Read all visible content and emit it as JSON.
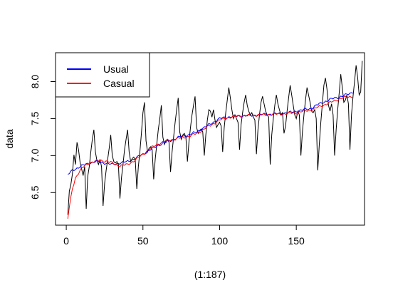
{
  "chart_data": {
    "type": "line",
    "title": "",
    "xlabel": "(1:187)",
    "ylabel": "data",
    "xlim": [
      -7,
      194.5
    ],
    "ylim": [
      6.06,
      8.39
    ],
    "x_ticks": [
      0,
      50,
      100,
      150
    ],
    "y_ticks": [
      6.5,
      7.0,
      7.5,
      8.0
    ],
    "x_tick_labels": [
      "0",
      "50",
      "100",
      "150"
    ],
    "y_tick_labels": [
      "6.5",
      "7.0",
      "7.5",
      "8.0"
    ],
    "grid": false,
    "legend": {
      "position": "top-left"
    },
    "n": 187,
    "series": [
      {
        "role": "data",
        "color": "#000000",
        "values": [
          6.2,
          6.52,
          6.61,
          6.75,
          7.01,
          6.88,
          7.18,
          7.08,
          6.91,
          6.82,
          6.73,
          6.85,
          6.28,
          6.72,
          6.85,
          7.05,
          7.22,
          7.35,
          7.05,
          6.93,
          6.88,
          6.95,
          6.85,
          6.32,
          6.62,
          6.8,
          6.95,
          7.1,
          7.28,
          7.0,
          6.92,
          6.9,
          6.92,
          6.88,
          6.42,
          6.7,
          6.88,
          7.08,
          7.22,
          7.35,
          7.05,
          6.92,
          6.96,
          6.98,
          6.94,
          6.55,
          6.85,
          7.05,
          7.3,
          7.58,
          7.72,
          7.2,
          7.05,
          7.1,
          7.12,
          7.08,
          6.68,
          6.95,
          7.15,
          7.35,
          7.5,
          7.68,
          7.25,
          7.15,
          7.2,
          7.22,
          7.18,
          6.78,
          7.05,
          7.25,
          7.45,
          7.62,
          7.78,
          7.32,
          7.22,
          7.28,
          7.3,
          7.25,
          6.92,
          7.18,
          7.38,
          7.55,
          7.68,
          7.8,
          7.38,
          7.3,
          7.34,
          7.36,
          7.32,
          7.0,
          7.28,
          7.48,
          7.62,
          7.6,
          7.52,
          7.62,
          7.48,
          7.38,
          7.42,
          7.45,
          7.4,
          7.05,
          7.38,
          7.58,
          7.75,
          7.92,
          7.78,
          7.62,
          7.5,
          7.55,
          7.5,
          7.45,
          7.08,
          7.42,
          7.58,
          7.72,
          7.82,
          7.68,
          7.6,
          7.55,
          7.58,
          7.52,
          7.48,
          7.02,
          7.35,
          7.55,
          7.72,
          7.8,
          7.7,
          7.6,
          7.55,
          7.52,
          6.88,
          7.28,
          7.5,
          7.68,
          7.82,
          7.7,
          7.62,
          7.55,
          7.58,
          7.3,
          7.4,
          7.6,
          7.78,
          7.95,
          7.82,
          7.68,
          7.55,
          7.5,
          7.6,
          7.55,
          7.0,
          7.32,
          7.55,
          7.75,
          7.92,
          7.82,
          7.72,
          7.6,
          7.58,
          7.62,
          7.5,
          6.8,
          7.15,
          7.45,
          7.7,
          7.95,
          8.05,
          7.9,
          7.68,
          7.6,
          7.7,
          7.55,
          7.0,
          7.35,
          7.62,
          7.85,
          8.1,
          7.92,
          7.72,
          7.75,
          7.82,
          7.7,
          7.08,
          7.55,
          7.8,
          8.0,
          8.22,
          8.06,
          7.82,
          7.86,
          8.28
        ]
      },
      {
        "name": "Usual",
        "color": "#0000ff",
        "knots_x": [
          1,
          4,
          10,
          15,
          20,
          25,
          30,
          35,
          40,
          45,
          50,
          55,
          60,
          65,
          70,
          75,
          80,
          85,
          90,
          95,
          100,
          105,
          110,
          115,
          120,
          125,
          130,
          135,
          140,
          145,
          150,
          155,
          160,
          165,
          170,
          175,
          180,
          187
        ],
        "knots_y": [
          6.74,
          6.8,
          6.86,
          6.9,
          6.92,
          6.9,
          6.88,
          6.9,
          6.92,
          6.96,
          7.02,
          7.08,
          7.14,
          7.18,
          7.22,
          7.26,
          7.28,
          7.32,
          7.38,
          7.44,
          7.5,
          7.52,
          7.53,
          7.54,
          7.54,
          7.55,
          7.56,
          7.56,
          7.57,
          7.58,
          7.6,
          7.62,
          7.64,
          7.7,
          7.74,
          7.78,
          7.8,
          7.86
        ]
      },
      {
        "name": "Casual",
        "color": "#ff0000",
        "knots_x": [
          1,
          2,
          4,
          6,
          9,
          12,
          15,
          18,
          21,
          24,
          27,
          30,
          35,
          40,
          45,
          50,
          55,
          60,
          65,
          70,
          75,
          80,
          85,
          90,
          95,
          100,
          105,
          110,
          115,
          120,
          125,
          130,
          135,
          140,
          145,
          150,
          155,
          160,
          165,
          170,
          175,
          180,
          187
        ],
        "knots_y": [
          6.15,
          6.3,
          6.55,
          6.7,
          6.8,
          6.86,
          6.9,
          6.92,
          6.93,
          6.93,
          6.92,
          6.9,
          6.86,
          6.88,
          6.94,
          7.02,
          7.1,
          7.16,
          7.2,
          7.22,
          7.24,
          7.26,
          7.3,
          7.36,
          7.42,
          7.48,
          7.51,
          7.53,
          7.54,
          7.54,
          7.55,
          7.55,
          7.56,
          7.56,
          7.57,
          7.58,
          7.6,
          7.62,
          7.66,
          7.7,
          7.74,
          7.78,
          7.8
        ]
      }
    ]
  }
}
